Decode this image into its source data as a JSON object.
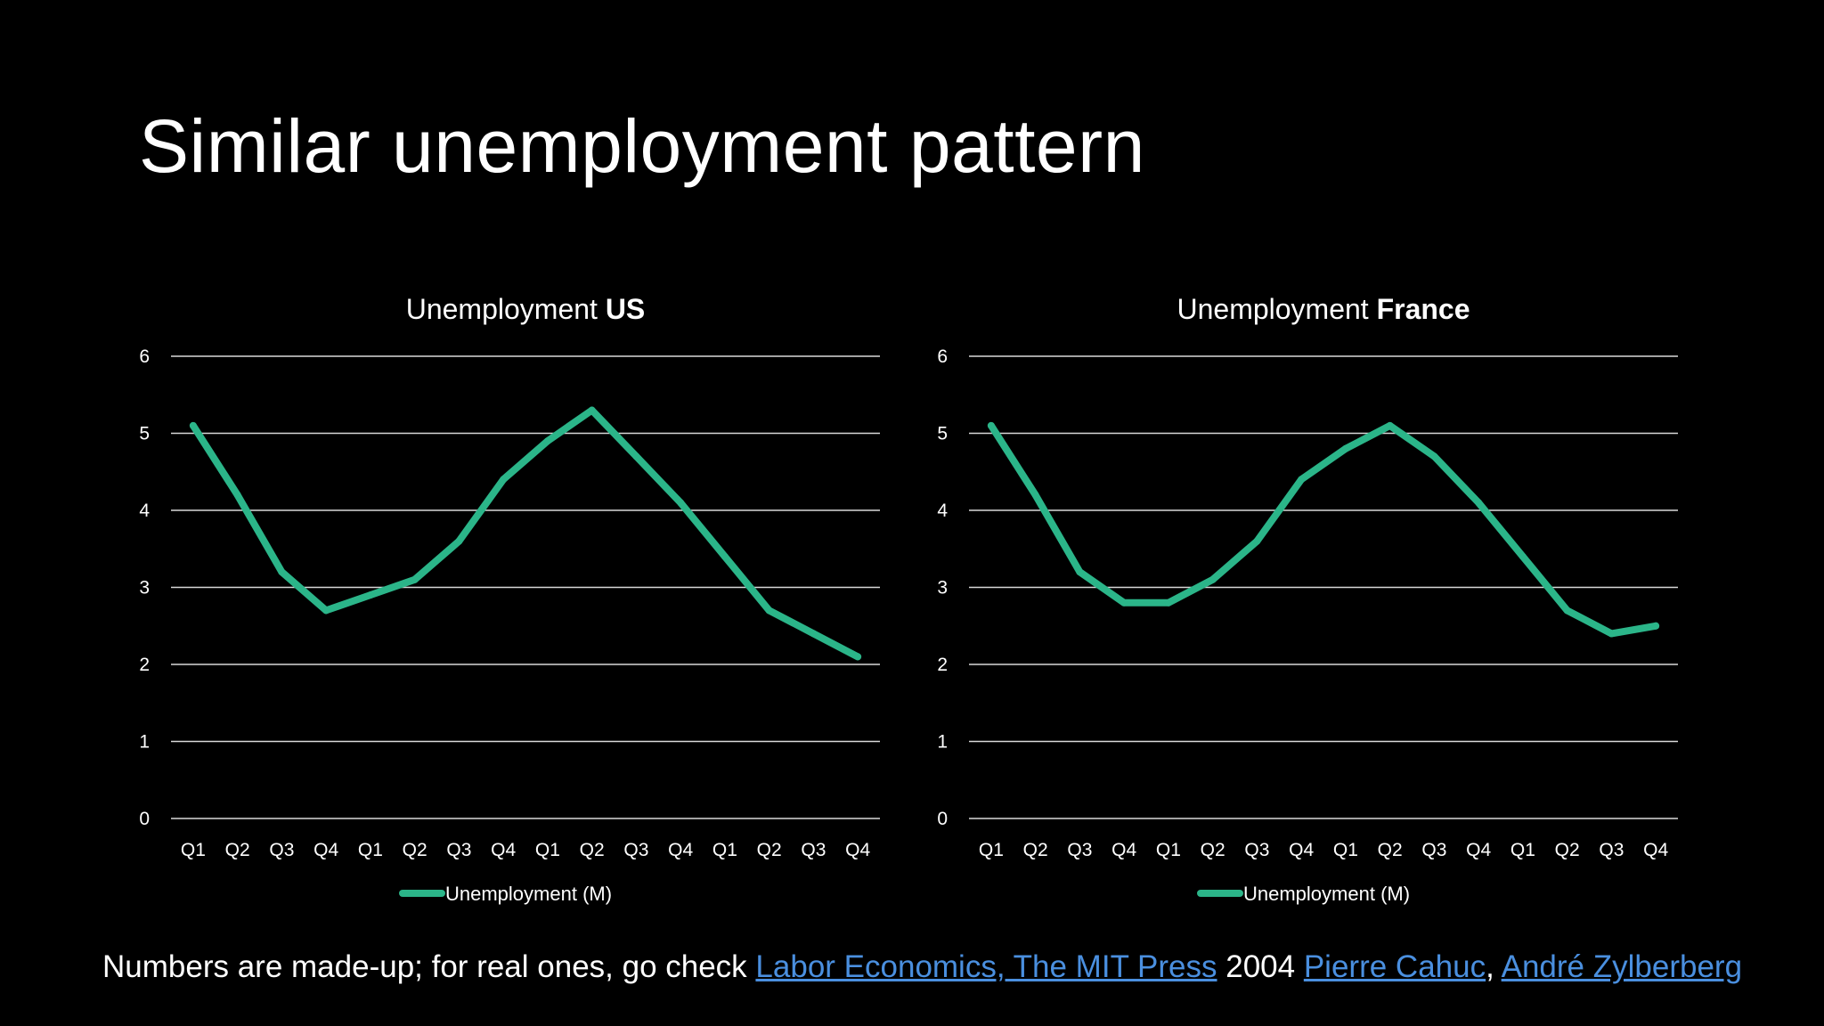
{
  "slide": {
    "title": "Similar unemployment pattern"
  },
  "chart_data": [
    {
      "type": "line",
      "title_prefix": "Unemployment ",
      "title_bold": "US",
      "categories": [
        "Q1",
        "Q2",
        "Q3",
        "Q4",
        "Q1",
        "Q2",
        "Q3",
        "Q4",
        "Q1",
        "Q2",
        "Q3",
        "Q4",
        "Q1",
        "Q2",
        "Q3",
        "Q4"
      ],
      "series": [
        {
          "name": "Unemployment (M)",
          "values": [
            5.1,
            4.2,
            3.2,
            2.7,
            2.9,
            3.1,
            3.6,
            4.4,
            4.9,
            5.3,
            4.7,
            4.1,
            3.4,
            2.7,
            2.4,
            2.1
          ]
        }
      ],
      "ylim": [
        0,
        6
      ],
      "yticks": [
        "0",
        "1",
        "2",
        "3",
        "4",
        "5",
        "6"
      ],
      "grid": true,
      "legend": "bottom",
      "line_color": "#2bb589"
    },
    {
      "type": "line",
      "title_prefix": "Unemployment ",
      "title_bold": "France",
      "categories": [
        "Q1",
        "Q2",
        "Q3",
        "Q4",
        "Q1",
        "Q2",
        "Q3",
        "Q4",
        "Q1",
        "Q2",
        "Q3",
        "Q4",
        "Q1",
        "Q2",
        "Q3",
        "Q4"
      ],
      "series": [
        {
          "name": "Unemployment (M)",
          "values": [
            5.1,
            4.2,
            3.2,
            2.8,
            2.8,
            3.1,
            3.6,
            4.4,
            4.8,
            5.1,
            4.7,
            4.1,
            3.4,
            2.7,
            2.4,
            2.5
          ]
        }
      ],
      "ylim": [
        0,
        6
      ],
      "yticks": [
        "0",
        "1",
        "2",
        "3",
        "4",
        "5",
        "6"
      ],
      "grid": true,
      "legend": "bottom",
      "line_color": "#2bb589"
    }
  ],
  "footer": {
    "text_before": "Numbers are made-up; for real ones, go check ",
    "link1": "Labor Economics, The MIT Press",
    "text_middle": " 2004 ",
    "link2": "Pierre Cahuc",
    "separator": ", ",
    "link3": "André Zylberberg"
  }
}
